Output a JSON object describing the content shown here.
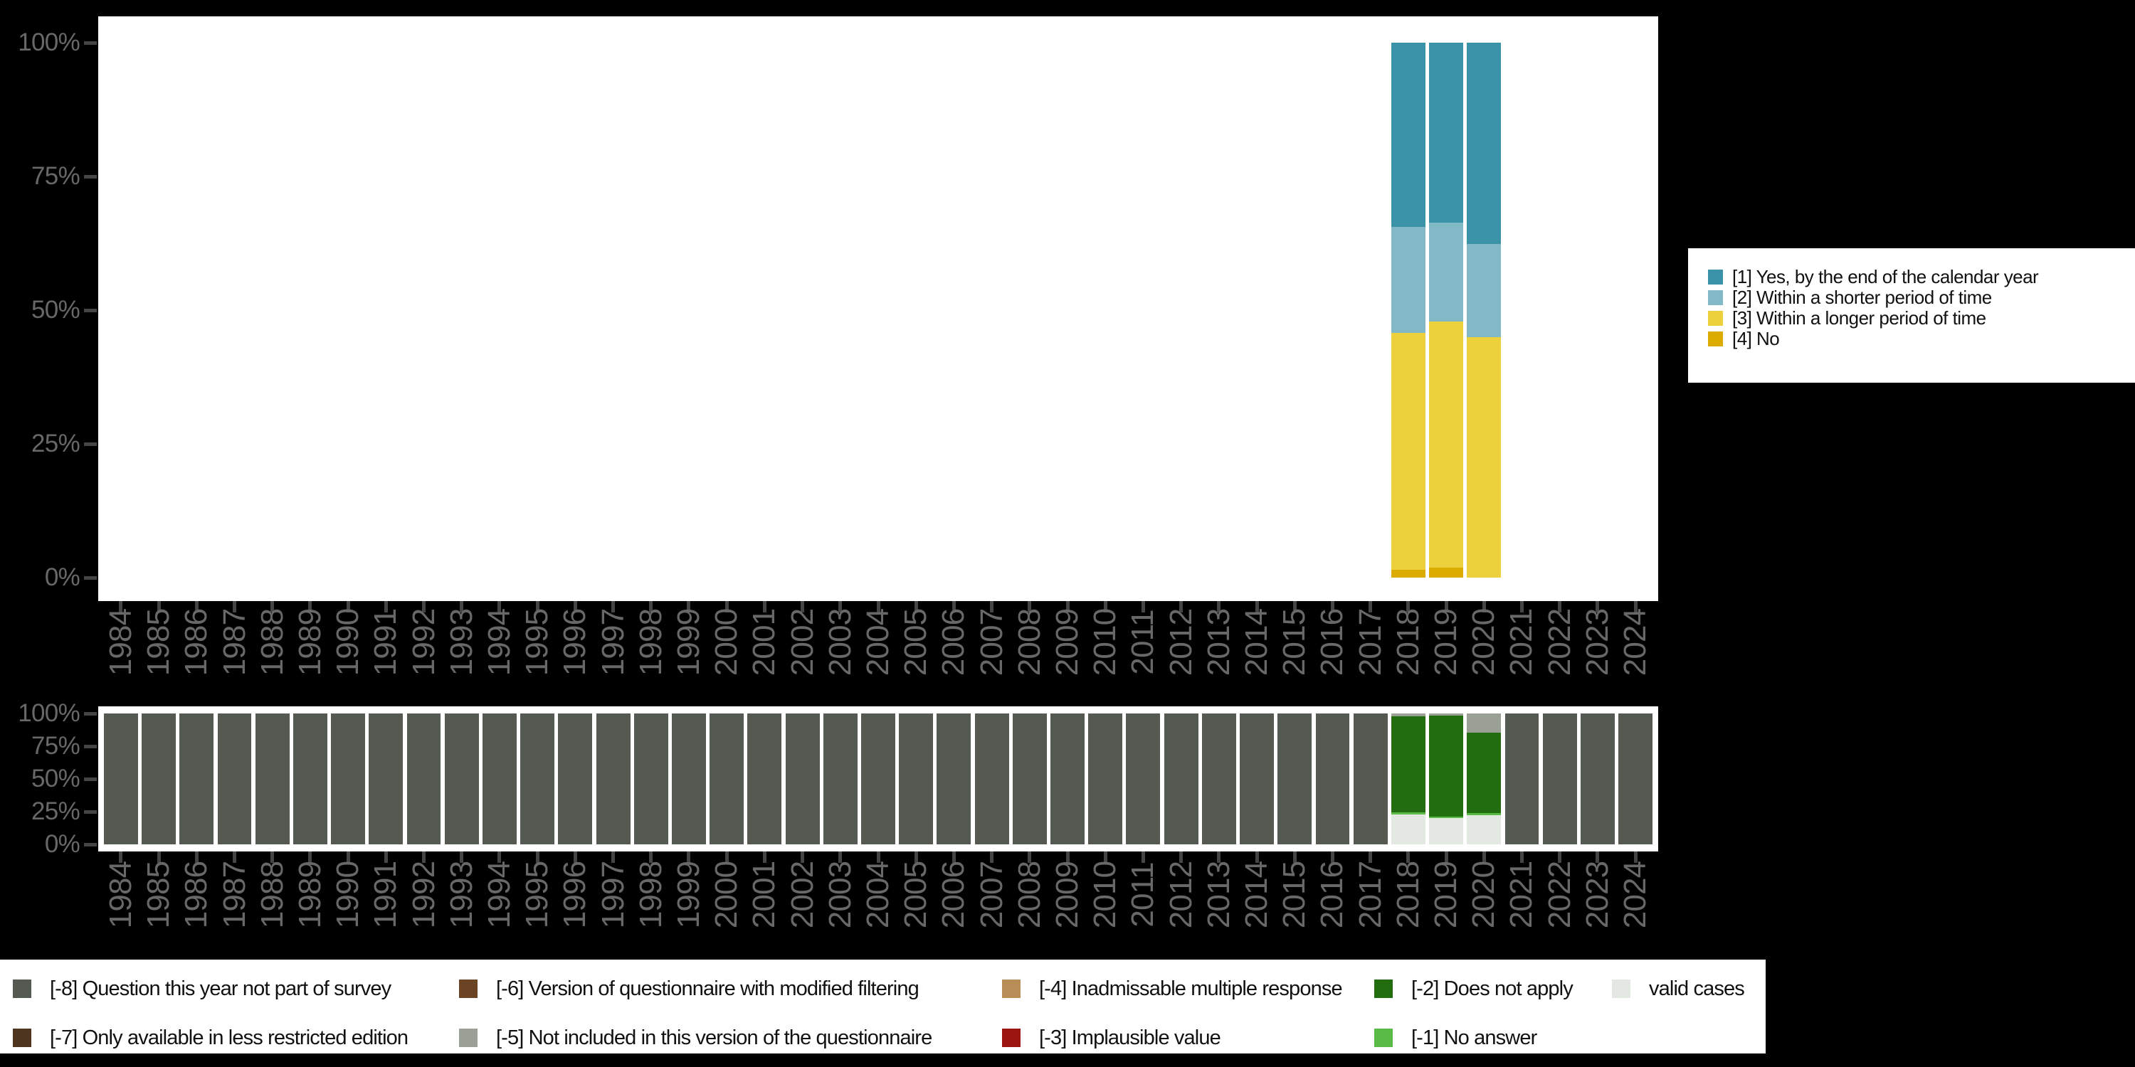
{
  "background": "#000000",
  "axis": {
    "tick_color": "#454545",
    "label_color": "#686868",
    "y_tick_labels": [
      "100%",
      "75%",
      "50%",
      "25%",
      "0%"
    ]
  },
  "chart_data": [
    {
      "id": "responses",
      "type": "bar",
      "stacked": true,
      "title": "",
      "xlabel": "",
      "ylabel": "",
      "ylim": [
        0,
        100
      ],
      "grid": false,
      "legend_position": "right",
      "categories": [
        "1984",
        "1985",
        "1986",
        "1987",
        "1988",
        "1989",
        "1990",
        "1991",
        "1992",
        "1993",
        "1994",
        "1995",
        "1996",
        "1997",
        "1998",
        "1999",
        "2000",
        "2001",
        "2002",
        "2003",
        "2004",
        "2005",
        "2006",
        "2007",
        "2008",
        "2009",
        "2010",
        "2011",
        "2012",
        "2013",
        "2014",
        "2015",
        "2016",
        "2017",
        "2018",
        "2019",
        "2020",
        "2021",
        "2022",
        "2023",
        "2024"
      ],
      "y_ticks": [
        {
          "label": "100%",
          "value": 100
        },
        {
          "label": "75%",
          "value": 75
        },
        {
          "label": "50%",
          "value": 50
        },
        {
          "label": "25%",
          "value": 25
        },
        {
          "label": "0%",
          "value": 0
        }
      ],
      "series": [
        {
          "name": "[1] Yes, by the end of the calendar year",
          "color": "#3a93a9",
          "values": {
            "2018": 34.5,
            "2019": 33.7,
            "2020": 37.6
          }
        },
        {
          "name": "[2] Within a shorter period of time",
          "color": "#82b9c7",
          "values": {
            "2018": 19.7,
            "2019": 18.4,
            "2020": 17.4
          }
        },
        {
          "name": "[3] Within a longer period of time",
          "color": "#ecd13c",
          "values": {
            "2018": 44.4,
            "2019": 46.0,
            "2020": 45.0
          }
        },
        {
          "name": "[4] No",
          "color": "#dcab00",
          "values": {
            "2018": 1.4,
            "2019": 1.9,
            "2020": 0
          }
        }
      ]
    },
    {
      "id": "missing-values",
      "type": "bar",
      "stacked": true,
      "title": "",
      "xlabel": "",
      "ylabel": "",
      "ylim": [
        0,
        100
      ],
      "grid": false,
      "legend_position": "bottom",
      "categories": [
        "1984",
        "1985",
        "1986",
        "1987",
        "1988",
        "1989",
        "1990",
        "1991",
        "1992",
        "1993",
        "1994",
        "1995",
        "1996",
        "1997",
        "1998",
        "1999",
        "2000",
        "2001",
        "2002",
        "2003",
        "2004",
        "2005",
        "2006",
        "2007",
        "2008",
        "2009",
        "2010",
        "2011",
        "2012",
        "2013",
        "2014",
        "2015",
        "2016",
        "2017",
        "2018",
        "2019",
        "2020",
        "2021",
        "2022",
        "2023",
        "2024"
      ],
      "y_ticks": [
        {
          "label": "100%",
          "value": 100
        },
        {
          "label": "75%",
          "value": 75
        },
        {
          "label": "50%",
          "value": 50
        },
        {
          "label": "25%",
          "value": 25
        },
        {
          "label": "0%",
          "value": 0
        }
      ],
      "series": [
        {
          "name": "[-8] Question this year not part of survey",
          "color": "#545a52",
          "values": {
            "1984": 100,
            "1985": 100,
            "1986": 100,
            "1987": 100,
            "1988": 100,
            "1989": 100,
            "1990": 100,
            "1991": 100,
            "1992": 100,
            "1993": 100,
            "1994": 100,
            "1995": 100,
            "1996": 100,
            "1997": 100,
            "1998": 100,
            "1999": 100,
            "2000": 100,
            "2001": 100,
            "2002": 100,
            "2003": 100,
            "2004": 100,
            "2005": 100,
            "2006": 100,
            "2007": 100,
            "2008": 100,
            "2009": 100,
            "2010": 100,
            "2011": 100,
            "2012": 100,
            "2013": 100,
            "2014": 100,
            "2015": 100,
            "2016": 100,
            "2017": 100,
            "2021": 100,
            "2022": 100,
            "2023": 100,
            "2024": 100
          }
        },
        {
          "name": "[-5] Not included in this version of the questionnaire",
          "color": "#9aa096",
          "values": {
            "2018": 2.0,
            "2019": 1.5,
            "2020": 14.5
          }
        },
        {
          "name": "[-2] Does not apply",
          "color": "#216d10",
          "values": {
            "2018": 73.5,
            "2019": 77.5,
            "2020": 61.5
          }
        },
        {
          "name": "[-1] No answer",
          "color": "#59ba46",
          "values": {
            "2018": 1.5,
            "2019": 1.0,
            "2020": 1.5
          }
        },
        {
          "name": "valid cases",
          "color": "#e3e8e2",
          "values": {
            "2018": 23.0,
            "2019": 20.0,
            "2020": 22.5
          }
        }
      ],
      "legend": {
        "rows": 2,
        "items": [
          {
            "label": "[-8] Question this year not part of survey",
            "color": "#545a52",
            "col": 0,
            "row": 0
          },
          {
            "label": "[-7] Only available in less restricted edition",
            "color": "#4e351f",
            "col": 0,
            "row": 1
          },
          {
            "label": "[-6] Version of questionnaire with modified filtering",
            "color": "#6b4423",
            "col": 1,
            "row": 0
          },
          {
            "label": "[-5] Not included in this version of the questionnaire",
            "color": "#9aa096",
            "col": 1,
            "row": 1
          },
          {
            "label": "[-4] Inadmissable multiple response",
            "color": "#b98e56",
            "col": 2,
            "row": 0
          },
          {
            "label": "[-3] Implausible value",
            "color": "#9c1410",
            "col": 2,
            "row": 1
          },
          {
            "label": "[-2] Does not apply",
            "color": "#216d10",
            "col": 3,
            "row": 0
          },
          {
            "label": "[-1] No answer",
            "color": "#59ba46",
            "col": 3,
            "row": 1
          },
          {
            "label": "valid cases",
            "color": "#e3e8e2",
            "col": 4,
            "row": 0
          }
        ]
      }
    }
  ]
}
